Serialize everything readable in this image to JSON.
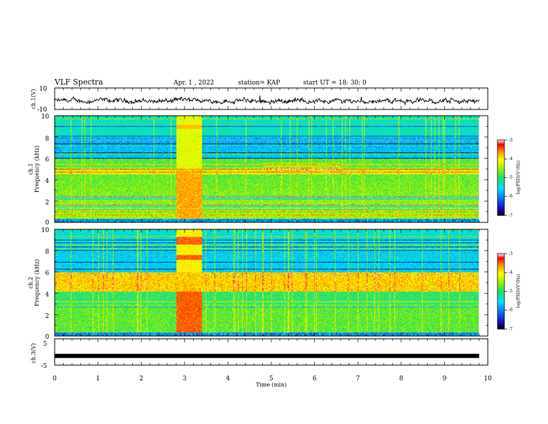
{
  "header": {
    "title": "VLF Spectra",
    "date": "Apr. 1  , 2022",
    "station": "station= KAP",
    "start": "start  UT  =   18: 30: 0"
  },
  "chart_data": [
    {
      "type": "line",
      "panel": "ch1-waveform",
      "ylabel": "ch.1(V)",
      "ylim": [
        -10,
        10
      ],
      "yticks": [
        "10",
        "-10"
      ],
      "xlim": [
        0,
        10
      ],
      "color": "#000000",
      "description_of_trace": "noisy waveform centred near -2 V, amplitude about ±3 V"
    },
    {
      "type": "heatmap",
      "panel": "ch1-spectrogram",
      "ylabel_line1": "ch.1",
      "ylabel_line2": "Frequency  (kHz)",
      "ylim": [
        0,
        10
      ],
      "yticks": [
        "0",
        "2",
        "4",
        "6",
        "8",
        "10"
      ],
      "xlim": [
        0,
        10
      ],
      "colorbar": {
        "label": "log(PSD)(V²/Hz)",
        "range": [
          -7,
          -3
        ],
        "ticks": [
          "-3",
          "-4",
          "-5",
          "-6",
          "-7"
        ]
      }
    },
    {
      "type": "heatmap",
      "panel": "ch2-spectrogram",
      "ylabel_line1": "ch.2",
      "ylabel_line2": "Frequency  (kHz)",
      "ylim": [
        0,
        10
      ],
      "yticks": [
        "0",
        "2",
        "4",
        "6",
        "8",
        "10"
      ],
      "xlim": [
        0,
        10
      ],
      "colorbar": {
        "label": "log(PSD)(V²/Hz)",
        "range": [
          -7,
          -3
        ],
        "ticks": [
          "-3",
          "-4",
          "-5",
          "-6",
          "-7"
        ]
      }
    },
    {
      "type": "line",
      "panel": "ch3-waveform",
      "ylabel": "ch.3(V)",
      "ylim": [
        -5,
        5
      ],
      "yticks": [
        "5",
        "-5"
      ],
      "xlim": [
        0,
        10
      ],
      "xlabel": "Time  (min)",
      "xticks": [
        "0",
        "1",
        "2",
        "3",
        "4",
        "5",
        "6",
        "7",
        "8",
        "9",
        "10"
      ],
      "level": -1.5,
      "color": "#000000"
    }
  ]
}
